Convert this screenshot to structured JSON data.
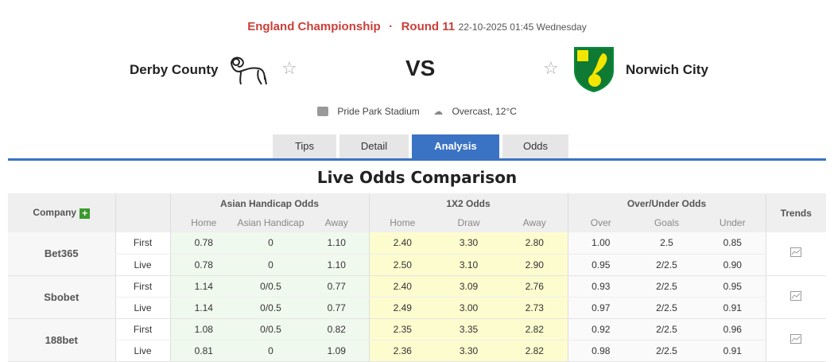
{
  "match": {
    "league": "England Championship",
    "separator": "·",
    "round": "Round 11",
    "datetime": "22-10-2025 01:45 Wednesday",
    "home": "Derby County",
    "away": "Norwich City",
    "vs": "VS",
    "venue": "Pride Park Stadium",
    "weather": "Overcast, 12°C"
  },
  "tabs": [
    {
      "label": "Tips"
    },
    {
      "label": "Detail"
    },
    {
      "label": "Analysis",
      "active": true
    },
    {
      "label": "Odds"
    }
  ],
  "section_title": "Live Odds Comparison",
  "table": {
    "headers": {
      "company": "Company",
      "asian": "Asian Handicap Odds",
      "x12": "1X2 Odds",
      "ou": "Over/Under Odds",
      "trends": "Trends"
    },
    "sub": [
      "Home",
      "Asian Handicap",
      "Away",
      "Home",
      "Draw",
      "Away",
      "Over",
      "Goals",
      "Under"
    ],
    "rows": [
      {
        "company": "Bet365",
        "first": [
          "0.78",
          "0",
          "1.10",
          "2.40",
          "3.30",
          "2.80",
          "1.00",
          "2.5",
          "0.85"
        ],
        "live": [
          "0.78",
          "0",
          "1.10",
          "2.50",
          "3.10",
          "2.90",
          "0.95",
          "2/2.5",
          "0.90"
        ]
      },
      {
        "company": "Sbobet",
        "first": [
          "1.14",
          "0/0.5",
          "0.77",
          "2.40",
          "3.09",
          "2.76",
          "0.93",
          "2/2.5",
          "0.95"
        ],
        "live": [
          "1.14",
          "0/0.5",
          "0.77",
          "2.49",
          "3.00",
          "2.73",
          "0.97",
          "2/2.5",
          "0.91"
        ]
      },
      {
        "company": "188bet",
        "first": [
          "1.08",
          "0/0.5",
          "0.82",
          "2.35",
          "3.35",
          "2.82",
          "0.92",
          "2/2.5",
          "0.96"
        ],
        "live": [
          "0.81",
          "0",
          "1.09",
          "2.36",
          "3.30",
          "2.82",
          "0.98",
          "2/2.5",
          "0.91"
        ]
      }
    ],
    "type_labels": {
      "first": "First",
      "live": "Live"
    }
  },
  "colors": {
    "accent": "#3b73c4",
    "league": "#c9403a",
    "asian_bg": "#f0f9ee",
    "x12_bg": "#fdfccf"
  }
}
